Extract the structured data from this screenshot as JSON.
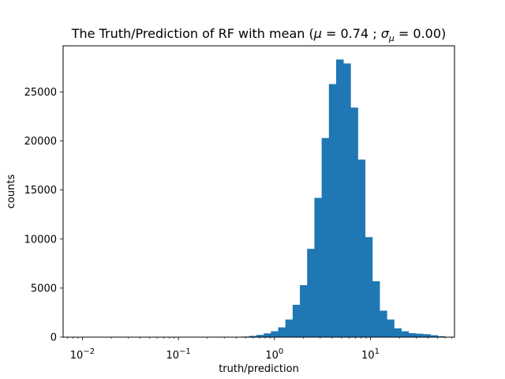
{
  "chart_data": {
    "type": "bar",
    "title": "The Truth/Prediction of RF with mean (μ = 0.74 ; σμ = 0.00)",
    "title_parts": {
      "prefix": "The Truth/Prediction of RF with mean (",
      "mu_symbol": "μ",
      "mu_value": " = 0.74 ; ",
      "sigma_symbol": "σ",
      "sigma_sub": "μ",
      "sigma_value": " = 0.00)"
    },
    "xlabel": "truth/prediction",
    "ylabel": "counts",
    "xscale": "log",
    "xlim": [
      0.0063,
      75
    ],
    "ylim": [
      0,
      29700
    ],
    "x_major_ticks": [
      {
        "value": 0.01,
        "base": "10",
        "exp": "−2"
      },
      {
        "value": 0.1,
        "base": "10",
        "exp": "−1"
      },
      {
        "value": 1,
        "base": "10",
        "exp": "0"
      },
      {
        "value": 10,
        "base": "10",
        "exp": "1"
      }
    ],
    "y_ticks": [
      {
        "value": 0,
        "label": "0"
      },
      {
        "value": 5000,
        "label": "5000"
      },
      {
        "value": 10000,
        "label": "10000"
      },
      {
        "value": 15000,
        "label": "15000"
      },
      {
        "value": 20000,
        "label": "20000"
      },
      {
        "value": 25000,
        "label": "25000"
      }
    ],
    "bin_edges_log10": {
      "start": -2.0,
      "width": 0.0755,
      "count": 50
    },
    "values": [
      0,
      0,
      0,
      0,
      0,
      0,
      0,
      0,
      0,
      0,
      0,
      0,
      0,
      0,
      0,
      0,
      0,
      0,
      0,
      0,
      0,
      20,
      60,
      130,
      230,
      380,
      600,
      1000,
      1800,
      3300,
      5300,
      9000,
      14200,
      20300,
      25800,
      28300,
      27900,
      23400,
      18100,
      10200,
      5700,
      2700,
      1800,
      900,
      600,
      400,
      350,
      300,
      200,
      100
    ],
    "bar_color": "#1f77b4",
    "grid": false
  }
}
